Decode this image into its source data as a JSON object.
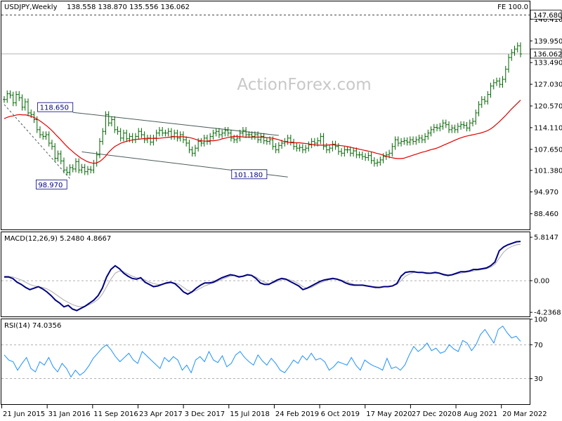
{
  "header": {
    "symbol": "USDJPY,Weekly",
    "ohlc": "138.558 138.870 135.556 136.062",
    "fe": "FE 100.0"
  },
  "watermark": "ActionForex.com",
  "colors": {
    "candle": "#006400",
    "ma": "#e00000",
    "macd": "#000080",
    "signal": "#aaaaaa",
    "rsi": "#1e90ff",
    "channel": "#4a5a5a",
    "grid": "#808080"
  },
  "chart_data": [
    {
      "panel": "price",
      "type": "line",
      "ylim": [
        84.0,
        151.5
      ],
      "price_ticks": [
        "146.410",
        "139.950",
        "133.490",
        "127.030",
        "120.570",
        "114.110",
        "107.650",
        "101.380",
        "94.970",
        "88.460"
      ],
      "level_labels": {
        "upper": "147.680",
        "current": "136.062"
      },
      "levels": {
        "upper": 147.68,
        "current": 136.062
      },
      "annotations": [
        {
          "text": "118.650",
          "value": 118.65
        },
        {
          "text": "98.970",
          "value": 98.97
        },
        {
          "text": "101.180",
          "value": 101.18
        }
      ],
      "x_labels": [
        "21 Jun 2015",
        "31 Jan 2016",
        "11 Sep 2016",
        "23 Apr 2017",
        "3 Dec 2017",
        "15 Jul 2018",
        "24 Feb 2019",
        "6 Oct 2019",
        "17 May 2020",
        "27 Dec 2020",
        "8 Aug 2021",
        "20 Mar 2022"
      ],
      "series": [
        {
          "name": "",
          "kind": "price",
          "values": [
            122.5,
            124.2,
            123.8,
            121.5,
            124.0,
            123.0,
            120.2,
            121.8,
            118.5,
            118.0,
            116.5,
            113.5,
            112.0,
            111.5,
            112.0,
            109.5,
            108.5,
            105.0,
            106.3,
            104.2,
            101.5,
            100.8,
            102.2,
            101.8,
            104.0,
            101.5,
            102.3,
            101.0,
            101.7,
            101.5,
            103.5,
            106.0,
            110.0,
            113.0,
            118.0,
            115.5,
            116.5,
            113.5,
            113.0,
            111.0,
            112.5,
            110.8,
            111.5,
            110.5,
            111.5,
            113.0,
            112.0,
            110.5,
            111.0,
            109.8,
            111.0,
            112.5,
            113.3,
            112.5,
            112.5,
            113.0,
            111.5,
            112.5,
            111.0,
            112.0,
            110.5,
            109.5,
            107.5,
            106.5,
            108.0,
            110.0,
            109.5,
            111.0,
            110.0,
            111.5,
            112.5,
            113.0,
            112.0,
            112.5,
            113.3,
            112.5,
            111.0,
            110.5,
            111.0,
            112.5,
            113.3,
            112.0,
            112.0,
            111.5,
            112.0,
            110.5,
            111.5,
            110.2,
            110.0,
            110.5,
            108.5,
            107.5,
            108.8,
            109.5,
            110.0,
            111.0,
            109.8,
            108.5,
            108.0,
            108.2,
            107.5,
            108.0,
            109.0,
            110.0,
            109.5,
            110.2,
            111.5,
            108.5,
            107.5,
            108.0,
            109.2,
            108.5,
            107.0,
            106.5,
            107.5,
            107.5,
            106.5,
            107.2,
            106.0,
            106.0,
            105.5,
            105.2,
            105.8,
            104.3,
            103.5,
            103.8,
            104.5,
            105.5,
            106.0,
            106.5,
            108.5,
            110.5,
            109.5,
            110.0,
            110.2,
            109.8,
            110.5,
            110.0,
            110.5,
            111.0,
            110.5,
            111.5,
            112.5,
            113.5,
            114.2,
            114.0,
            114.5,
            115.5,
            115.0,
            113.5,
            114.0,
            113.5,
            114.5,
            115.0,
            114.8,
            114.0,
            115.5,
            116.0,
            118.5,
            121.0,
            122.5,
            122.0,
            124.0,
            126.5,
            127.5,
            128.0,
            127.0,
            128.5,
            131.5,
            135.0,
            136.5,
            137.5,
            138.5,
            136.06
          ]
        },
        {
          "name": "",
          "kind": "ma",
          "values": [
            116.8,
            117.2,
            117.5,
            117.6,
            117.9,
            118.0,
            117.9,
            117.9,
            117.7,
            117.4,
            117.0,
            116.5,
            115.9,
            115.2,
            114.5,
            113.7,
            112.8,
            111.8,
            110.9,
            109.9,
            108.9,
            108.0,
            107.2,
            106.4,
            105.7,
            105.0,
            104.5,
            104.0,
            103.7,
            103.5,
            103.6,
            104.0,
            104.7,
            105.6,
            106.8,
            107.7,
            108.5,
            109.0,
            109.5,
            109.8,
            110.1,
            110.3,
            110.5,
            110.6,
            110.7,
            110.8,
            110.9,
            110.9,
            110.9,
            110.9,
            110.9,
            111.0,
            111.1,
            111.2,
            111.3,
            111.4,
            111.4,
            111.4,
            111.4,
            111.3,
            111.2,
            111.0,
            110.7,
            110.4,
            110.2,
            110.1,
            110.1,
            110.2,
            110.2,
            110.3,
            110.5,
            110.8,
            111.0,
            111.2,
            111.4,
            111.5,
            111.5,
            111.4,
            111.3,
            111.3,
            111.3,
            111.3,
            111.3,
            111.3,
            111.3,
            111.2,
            111.1,
            111.0,
            110.8,
            110.6,
            110.3,
            110.0,
            109.8,
            109.7,
            109.6,
            109.6,
            109.6,
            109.5,
            109.4,
            109.3,
            109.1,
            109.0,
            108.9,
            108.9,
            108.9,
            108.9,
            109.0,
            109.0,
            108.9,
            108.8,
            108.7,
            108.6,
            108.4,
            108.2,
            108.0,
            107.8,
            107.6,
            107.4,
            107.2,
            107.0,
            106.8,
            106.5,
            106.3,
            106.0,
            105.7,
            105.4,
            105.2,
            105.0,
            104.9,
            104.9,
            105.0,
            105.3,
            105.6,
            105.9,
            106.2,
            106.5,
            106.8,
            107.0,
            107.3,
            107.6,
            107.8,
            108.1,
            108.5,
            108.9,
            109.3,
            109.7,
            110.1,
            110.5,
            110.9,
            111.2,
            111.5,
            111.7,
            111.9,
            112.1,
            112.3,
            112.5,
            112.8,
            113.1,
            113.6,
            114.2,
            115.0,
            115.8,
            116.7,
            117.6,
            118.6,
            119.6,
            120.5,
            121.4,
            122.3
          ]
        }
      ]
    },
    {
      "panel": "macd",
      "type": "line",
      "title": "MACD(12,26,9) 5.2480 4.8667",
      "ticks": [
        "5.8147",
        "0.00",
        "-4.2368"
      ],
      "ylim": [
        -4.6,
        6.2
      ],
      "series": [
        {
          "name": "",
          "values": [
            0.5,
            0.5,
            0.3,
            -0.2,
            -0.5,
            -0.9,
            -1.2,
            -1.0,
            -0.8,
            -1.1,
            -1.5,
            -2.0,
            -2.6,
            -3.0,
            -3.5,
            -3.3,
            -3.8,
            -4.0,
            -3.7,
            -3.4,
            -3.0,
            -2.6,
            -2.0,
            -1.0,
            0.5,
            1.5,
            2.0,
            1.6,
            1.0,
            0.6,
            0.3,
            0.2,
            0.4,
            -0.2,
            -0.5,
            -0.8,
            -0.7,
            -0.5,
            -0.3,
            -0.2,
            -0.4,
            -0.9,
            -1.5,
            -1.8,
            -1.5,
            -1.0,
            -0.6,
            -0.3,
            -0.3,
            -0.2,
            0.1,
            0.4,
            0.6,
            0.8,
            0.7,
            0.5,
            0.6,
            0.8,
            0.7,
            0.3,
            -0.3,
            -0.5,
            -0.5,
            -0.2,
            0.1,
            0.3,
            0.2,
            -0.1,
            -0.4,
            -0.7,
            -1.2,
            -1.0,
            -0.7,
            -0.4,
            -0.1,
            0.1,
            0.2,
            0.3,
            0.2,
            0.0,
            -0.3,
            -0.5,
            -0.6,
            -0.6,
            -0.6,
            -0.7,
            -0.8,
            -0.9,
            -0.9,
            -0.8,
            -0.8,
            -0.7,
            -0.4,
            0.6,
            1.1,
            1.2,
            1.2,
            1.1,
            1.1,
            1.0,
            1.0,
            1.1,
            1.0,
            0.8,
            0.7,
            0.8,
            1.0,
            1.2,
            1.2,
            1.3,
            1.5,
            1.5,
            1.6,
            1.7,
            2.0,
            2.5,
            4.0,
            4.5,
            4.8,
            5.0,
            5.2,
            5.25
          ]
        },
        {
          "name": "",
          "values": [
            0.6,
            0.6,
            0.5,
            0.3,
            0.1,
            -0.2,
            -0.5,
            -0.7,
            -0.8,
            -0.9,
            -1.1,
            -1.4,
            -1.8,
            -2.2,
            -2.6,
            -2.9,
            -3.2,
            -3.4,
            -3.5,
            -3.4,
            -3.2,
            -2.9,
            -2.5,
            -1.8,
            -0.8,
            0.2,
            1.0,
            1.3,
            1.2,
            0.9,
            0.6,
            0.4,
            0.3,
            0.1,
            -0.2,
            -0.4,
            -0.5,
            -0.5,
            -0.4,
            -0.3,
            -0.3,
            -0.5,
            -0.9,
            -1.3,
            -1.5,
            -1.3,
            -1.0,
            -0.7,
            -0.5,
            -0.3,
            -0.1,
            0.2,
            0.4,
            0.6,
            0.7,
            0.6,
            0.6,
            0.7,
            0.7,
            0.5,
            0.1,
            -0.2,
            -0.4,
            -0.3,
            -0.1,
            0.1,
            0.2,
            0.1,
            -0.1,
            -0.4,
            -0.8,
            -1.0,
            -0.9,
            -0.6,
            -0.3,
            -0.1,
            0.1,
            0.2,
            0.2,
            0.1,
            -0.1,
            -0.3,
            -0.5,
            -0.6,
            -0.6,
            -0.7,
            -0.8,
            -0.8,
            -0.9,
            -0.8,
            -0.8,
            -0.7,
            -0.5,
            0.0,
            0.6,
            0.9,
            1.1,
            1.1,
            1.1,
            1.1,
            1.0,
            1.0,
            1.0,
            0.9,
            0.8,
            0.8,
            0.9,
            1.0,
            1.1,
            1.2,
            1.3,
            1.4,
            1.5,
            1.6,
            1.8,
            2.2,
            3.0,
            3.8,
            4.3,
            4.6,
            4.8,
            4.87
          ]
        }
      ]
    },
    {
      "panel": "rsi",
      "type": "line",
      "title": "RSI(14) 74.0356",
      "ticks": [
        "100",
        "70",
        "30"
      ],
      "levels": [
        70,
        30
      ],
      "ylim": [
        0,
        100
      ],
      "series": [
        {
          "name": "",
          "values": [
            58,
            52,
            50,
            40,
            48,
            55,
            42,
            38,
            50,
            46,
            55,
            44,
            38,
            48,
            42,
            32,
            40,
            34,
            38,
            45,
            54,
            60,
            66,
            70,
            64,
            56,
            50,
            55,
            60,
            52,
            48,
            62,
            57,
            52,
            47,
            42,
            55,
            50,
            56,
            52,
            40,
            46,
            37,
            52,
            56,
            50,
            62,
            52,
            49,
            57,
            44,
            48,
            58,
            62,
            55,
            50,
            46,
            58,
            51,
            46,
            54,
            48,
            40,
            37,
            44,
            52,
            48,
            57,
            52,
            60,
            52,
            54,
            50,
            40,
            44,
            50,
            48,
            46,
            55,
            46,
            40,
            52,
            48,
            45,
            43,
            40,
            54,
            42,
            44,
            40,
            46,
            58,
            68,
            62,
            66,
            72,
            63,
            66,
            60,
            62,
            70,
            65,
            62,
            75,
            72,
            63,
            70,
            82,
            88,
            80,
            72,
            88,
            92,
            84,
            78,
            80,
            74
          ]
        }
      ]
    }
  ]
}
